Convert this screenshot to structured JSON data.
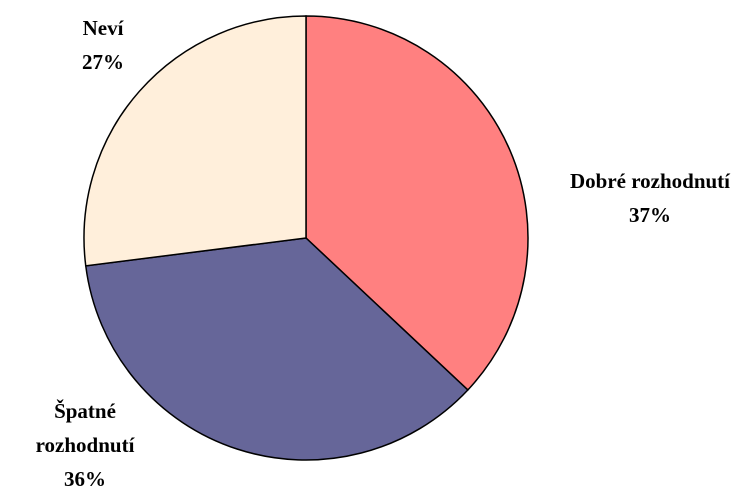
{
  "chart_data": {
    "type": "pie",
    "categories": [
      "Dobré rozhodnutí",
      "Špatné rozhodnutí",
      "Neví"
    ],
    "values": [
      37,
      36,
      27
    ],
    "value_labels": [
      "37%",
      "36%",
      "27%"
    ],
    "colors": [
      "#ff8080",
      "#666699",
      "#ffefdb"
    ]
  }
}
